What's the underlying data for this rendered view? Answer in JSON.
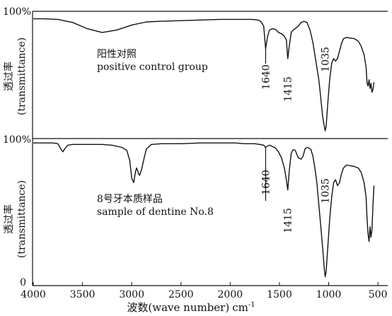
{
  "chart_data": {
    "type": "line",
    "xlabel": "波数(wave number) cm⁻¹",
    "xlabel_cn": "波数",
    "xlabel_paren": "(wave number)",
    "xlabel_unit": "cm",
    "xlabel_exp": "-1",
    "xlim": [
      4000,
      400
    ],
    "x_ticks": [
      "4000",
      "3500",
      "3000",
      "2500",
      "2000",
      "1500",
      "1000",
      "500"
    ],
    "x_tick_values": [
      4000,
      3500,
      3000,
      2500,
      2000,
      1500,
      1000,
      500
    ],
    "ylim": [
      0,
      100
    ],
    "panels": [
      {
        "ylabel_cn": "透过率",
        "ylabel_en": "(transmittance)",
        "y_top_label": "100%",
        "title_cn": "阳性对照",
        "title_en": "positive control group",
        "peaks": [
          {
            "x": 1640,
            "label": "1640"
          },
          {
            "x": 1415,
            "label": "1415"
          },
          {
            "x": 1035,
            "label": "1035"
          }
        ],
        "series": {
          "x": [
            4000,
            3900,
            3750,
            3600,
            3450,
            3300,
            3150,
            3000,
            2850,
            2700,
            2500,
            2300,
            2100,
            1950,
            1850,
            1780,
            1720,
            1690,
            1660,
            1640,
            1620,
            1600,
            1570,
            1540,
            1510,
            1480,
            1450,
            1430,
            1415,
            1400,
            1380,
            1360,
            1340,
            1310,
            1280,
            1250,
            1220,
            1190,
            1160,
            1130,
            1100,
            1080,
            1060,
            1045,
            1035,
            1025,
            1010,
            990,
            970,
            950,
            930,
            910,
            890,
            870,
            850,
            820,
            780,
            740,
            700,
            670,
            640,
            620,
            610,
            600,
            590,
            580,
            570,
            560,
            550,
            540
          ],
          "y": [
            94,
            94,
            93.5,
            91,
            86,
            83,
            85,
            89,
            91.5,
            92,
            92.5,
            93,
            93.5,
            93.5,
            93.5,
            93.5,
            93,
            92,
            88,
            70,
            80,
            85,
            86,
            85.5,
            83,
            82,
            80,
            77,
            62,
            72,
            83,
            85,
            86,
            88,
            91,
            92,
            91,
            85,
            75,
            60,
            45,
            30,
            15,
            8,
            4,
            8,
            25,
            45,
            58,
            62,
            60,
            62,
            68,
            74,
            78,
            79,
            78.5,
            78,
            76,
            72,
            65,
            55,
            42,
            40,
            45,
            38,
            42,
            35,
            37,
            43
          ]
        }
      },
      {
        "ylabel_cn": "透过率",
        "ylabel_en": "(transmittance)",
        "y_top_label": "100%",
        "y_bottom_label": "0",
        "title_cn": "8号牙本质样品",
        "title_en": "sample of dentine No.8",
        "peaks": [
          {
            "x": 1640,
            "label": "1640"
          },
          {
            "x": 1415,
            "label": "1415"
          },
          {
            "x": 1035,
            "label": "1035"
          }
        ],
        "series": {
          "x": [
            4000,
            3900,
            3800,
            3750,
            3720,
            3700,
            3680,
            3650,
            3600,
            3500,
            3400,
            3300,
            3200,
            3100,
            3050,
            3020,
            3000,
            2980,
            2960,
            2950,
            2930,
            2920,
            2900,
            2870,
            2850,
            2800,
            2700,
            2500,
            2300,
            2100,
            1950,
            1850,
            1750,
            1700,
            1660,
            1640,
            1620,
            1600,
            1570,
            1540,
            1510,
            1480,
            1450,
            1430,
            1415,
            1400,
            1380,
            1360,
            1340,
            1310,
            1280,
            1260,
            1240,
            1220,
            1200,
            1180,
            1160,
            1140,
            1120,
            1100,
            1080,
            1060,
            1045,
            1035,
            1025,
            1010,
            990,
            970,
            950,
            930,
            910,
            890,
            870,
            850,
            820,
            780,
            740,
            700,
            670,
            640,
            620,
            610,
            600,
            590,
            580,
            570,
            560,
            550,
            540
          ],
          "y": [
            97,
            97,
            97,
            96.5,
            93,
            91,
            93,
            95.5,
            96,
            96,
            96,
            96,
            95.5,
            94,
            92,
            85,
            73,
            70,
            78,
            80,
            76,
            75,
            79,
            88,
            93,
            96,
            96.5,
            96.5,
            97,
            97,
            97,
            96.5,
            96.5,
            96,
            95.5,
            94,
            95,
            95.5,
            94.5,
            93.5,
            91,
            87,
            80,
            72,
            65,
            78,
            90,
            92.5,
            92,
            87,
            86,
            88,
            93,
            94,
            93.5,
            92.5,
            88,
            80,
            70,
            55,
            40,
            25,
            12,
            6,
            10,
            25,
            45,
            60,
            70,
            72,
            68,
            70,
            76,
            80,
            82,
            81.5,
            81,
            80,
            77,
            70,
            60,
            45,
            35,
            30,
            40,
            33,
            38,
            55,
            68
          ]
        }
      }
    ]
  }
}
